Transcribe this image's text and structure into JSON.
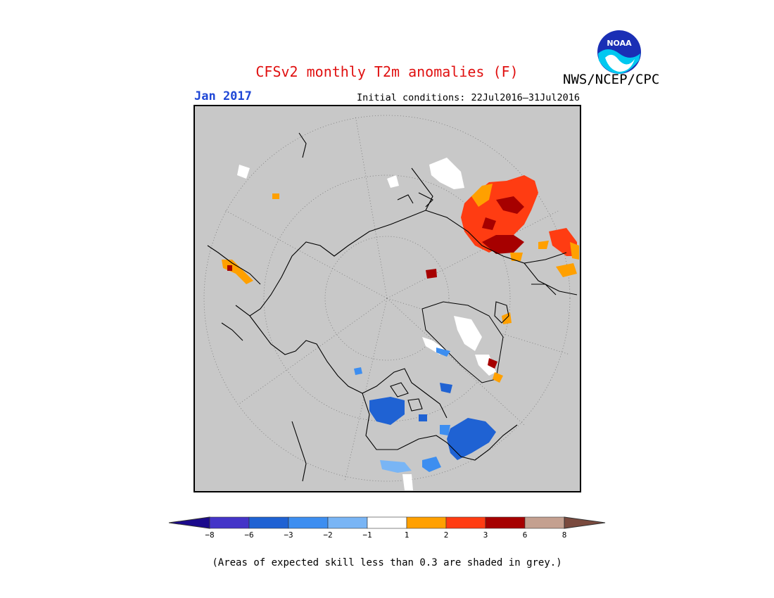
{
  "header": {
    "title": "CFSv2 monthly T2m anomalies (F)",
    "organization": "NWS/NCEP/CPC",
    "target_month": "Jan 2017",
    "initial_conditions": "Initial conditions: 22Jul2016–31Jul2016",
    "logo_text": "NOAA"
  },
  "legend": {
    "ticks": [
      "−8",
      "−6",
      "−3",
      "−2",
      "−1",
      "1",
      "2",
      "3",
      "6",
      "8"
    ],
    "colors": {
      "below_min": "#1b0a8c",
      "lt_-6": "#4434c8",
      "-6_to_-3": "#1f62d3",
      "-3_to_-2": "#3d8ef0",
      "-2_to_-1": "#79b5f5",
      "-1_to_1": "#ffffff",
      "1_to_2": "#ffa000",
      "2_to_3": "#ff3c12",
      "3_to_6": "#a60000",
      "6_to_8": "#c4a090",
      "above_max": "#7a4a3e"
    }
  },
  "map": {
    "projection": "north polar stereographic",
    "masked_color": "#c8c8c8",
    "masked_meaning": "skill < 0.3"
  },
  "footnote": "(Areas of expected skill less than 0.3 are shaded in grey.)"
}
